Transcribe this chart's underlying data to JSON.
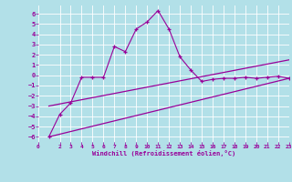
{
  "xlabel": "Windchill (Refroidissement éolien,°C)",
  "background_color": "#b2e0e8",
  "grid_color": "#ffffff",
  "line_color": "#990099",
  "xlim": [
    0,
    23
  ],
  "ylim": [
    -6.5,
    6.8
  ],
  "xticks": [
    0,
    2,
    3,
    4,
    5,
    6,
    7,
    8,
    9,
    10,
    11,
    12,
    13,
    14,
    15,
    16,
    17,
    18,
    19,
    20,
    21,
    22,
    23
  ],
  "yticks": [
    -6,
    -5,
    -4,
    -3,
    -2,
    -1,
    0,
    1,
    2,
    3,
    4,
    5,
    6
  ],
  "line1_x": [
    1,
    2,
    3,
    4,
    5,
    6,
    7,
    8,
    9,
    10,
    11,
    12,
    13,
    14,
    15,
    16,
    17,
    18,
    19,
    20,
    21,
    22,
    23
  ],
  "line1_y": [
    -6.0,
    -3.8,
    -2.7,
    -0.2,
    -0.2,
    -0.2,
    2.8,
    2.3,
    4.5,
    5.2,
    6.3,
    4.5,
    1.8,
    0.5,
    -0.6,
    -0.4,
    -0.3,
    -0.3,
    -0.2,
    -0.3,
    -0.2,
    -0.1,
    -0.3
  ],
  "trend1_x": [
    1,
    23
  ],
  "trend1_y": [
    -6.0,
    -0.3
  ],
  "trend2_x": [
    1,
    23
  ],
  "trend2_y": [
    -3.0,
    1.5
  ]
}
